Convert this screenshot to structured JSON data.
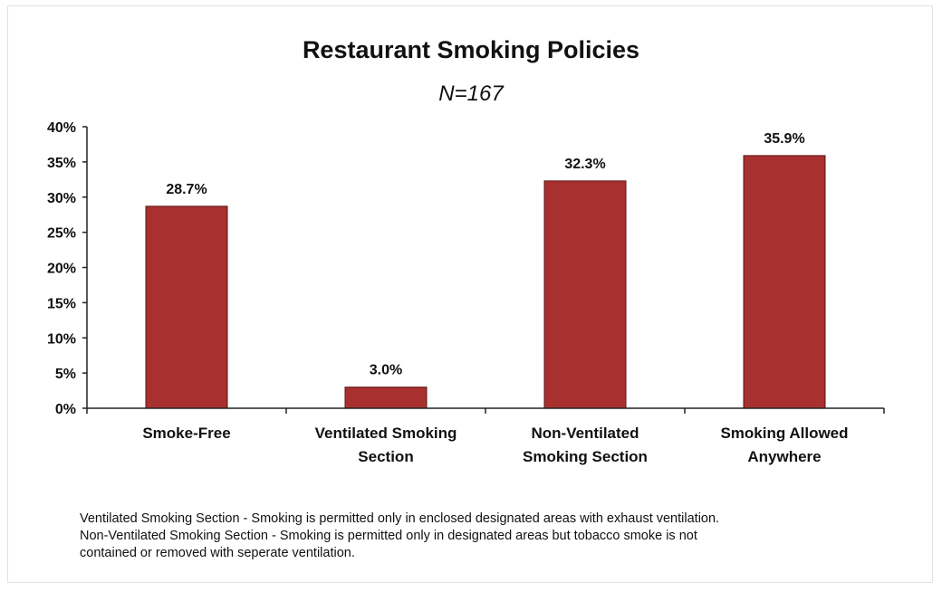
{
  "chart_data": {
    "type": "bar",
    "title": "Restaurant Smoking Policies",
    "subtitle": "N=167",
    "categories": [
      [
        "Smoke-Free"
      ],
      [
        "Ventilated Smoking",
        "Section"
      ],
      [
        "Non-Ventilated",
        "Smoking Section"
      ],
      [
        "Smoking Allowed",
        "Anywhere"
      ]
    ],
    "values": [
      28.7,
      3.0,
      32.3,
      35.9
    ],
    "data_labels": [
      "28.7%",
      "3.0%",
      "32.3%",
      "35.9%"
    ],
    "ylim": [
      0,
      40
    ],
    "yticks": [
      0,
      5,
      10,
      15,
      20,
      25,
      30,
      35,
      40
    ],
    "ytick_labels": [
      "0%",
      "5%",
      "10%",
      "15%",
      "20%",
      "25%",
      "30%",
      "35%",
      "40%"
    ],
    "xlabel": "",
    "ylabel": "",
    "grid": false,
    "bar_color": "#a8312f",
    "bar_edge_color": "#5a1614"
  },
  "notes": [
    "Ventilated Smoking Section - Smoking is permitted only in enclosed designated areas with exhaust ventilation.",
    "Non-Ventilated Smoking Section - Smoking is permitted only in designated areas but tobacco smoke is not",
    "contained or removed with seperate ventilation."
  ]
}
